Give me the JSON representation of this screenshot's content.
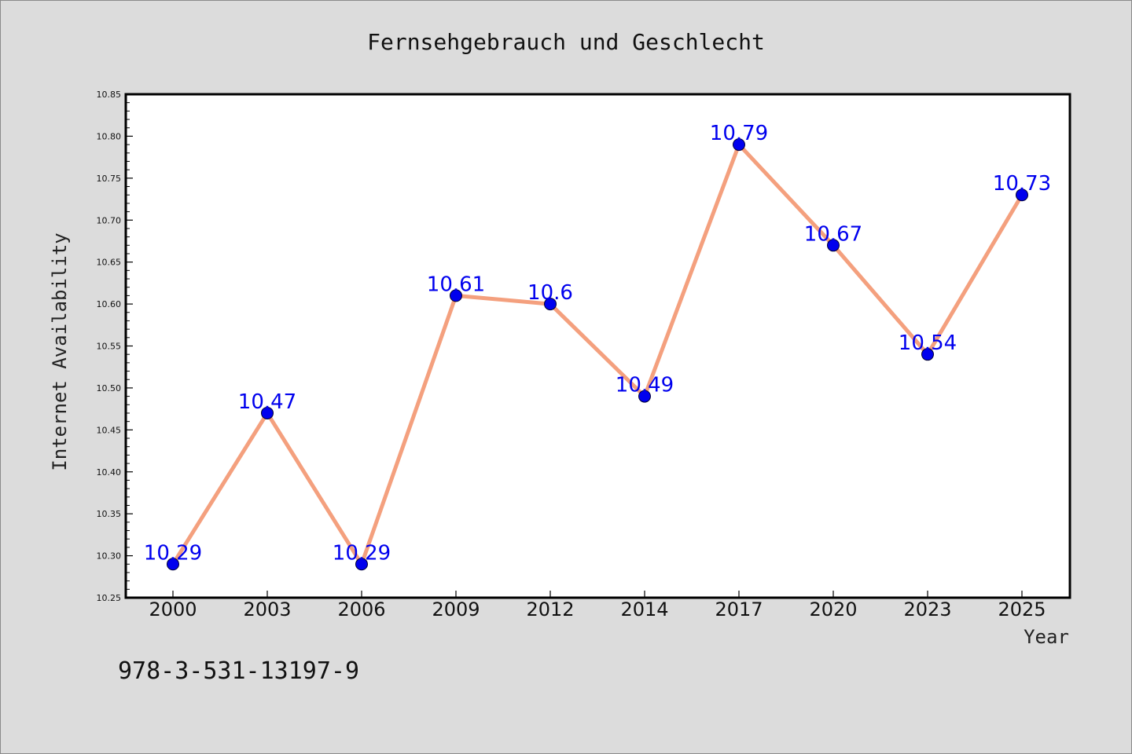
{
  "chart_data": {
    "type": "line",
    "title": "Fernsehgebrauch und Geschlecht",
    "xlabel": "Year",
    "ylabel": "Internet Availability",
    "categories": [
      "2000",
      "2003",
      "2006",
      "2009",
      "2012",
      "2014",
      "2017",
      "2020",
      "2023",
      "2025"
    ],
    "series": [
      {
        "values": [
          10.29,
          10.47,
          10.29,
          10.61,
          10.6,
          10.49,
          10.79,
          10.67,
          10.54,
          10.73
        ]
      }
    ],
    "data_labels": [
      "10.29",
      "10.47",
      "10.29",
      "10.61",
      "10.6",
      "10.49",
      "10.79",
      "10.67",
      "10.54",
      "10.73"
    ],
    "ylim": [
      10.25,
      10.85
    ],
    "yticks": [
      "10.25",
      "10.30",
      "10.35",
      "10.40",
      "10.45",
      "10.50",
      "10.55",
      "10.60",
      "10.65",
      "10.70",
      "10.75",
      "10.80",
      "10.85"
    ],
    "grid": false,
    "legend": "none",
    "colors": {
      "line": "#f4a07e",
      "marker": "#0000ee",
      "label": "#0000ee",
      "background": "#dcdcdc",
      "plot_background": "#ffffff"
    }
  },
  "footer": {
    "isbn": "978-3-531-13197-9"
  }
}
